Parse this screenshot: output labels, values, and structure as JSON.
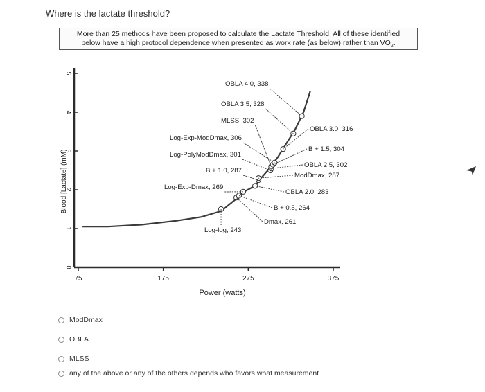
{
  "question": {
    "text": "Where is the lactate threshold?"
  },
  "figure": {
    "caption_line1": "More than 25 methods have been proposed to calculate the Lactate Threshold. All of these identified",
    "caption_line2": "below have a high protocol dependence when presented as work rate (as below) rather than VO",
    "caption_sub": "2",
    "caption_end": ".",
    "xlabel": "Power (watts)",
    "ylabel": "Blood [Lactate] (mM)",
    "x_tick_labels": [
      "75",
      "175",
      "275",
      "375"
    ],
    "y_tick_labels": [
      "0",
      "1",
      "2",
      "3",
      "4",
      "5"
    ],
    "annotations": [
      "OBLA 4.0, 338",
      "OBLA 3.5, 328",
      "MLSS, 302",
      "OBLA 3.0, 316",
      "Log-Exp-ModDmax, 306",
      "B + 1.5, 304",
      "Log-PolyModDmax, 301",
      "OBLA 2.5, 302",
      "B + 1.0, 287",
      "ModDmax, 287",
      "Log-Exp-Dmax, 269",
      "OBLA 2.0, 283",
      "B + 0.5, 264",
      "Dmax, 261",
      "Log-log, 243"
    ]
  },
  "chart_data": {
    "type": "line",
    "xlabel": "Power (watts)",
    "ylabel": "Blood [Lactate] (mM)",
    "xlim": [
      75,
      375
    ],
    "ylim": [
      0,
      5
    ],
    "x_ticks": [
      75,
      175,
      275,
      375
    ],
    "y_ticks": [
      0,
      1,
      2,
      3,
      4,
      5
    ],
    "series": [
      {
        "x": [
          80,
          110,
          150,
          190,
          220,
          243,
          260,
          270,
          283,
          290,
          300,
          310,
          320,
          330,
          340
        ],
        "y": [
          1.05,
          1.05,
          1.1,
          1.2,
          1.3,
          1.45,
          1.75,
          1.95,
          2.1,
          2.3,
          2.55,
          2.85,
          3.2,
          3.55,
          4.0
        ]
      }
    ],
    "points": [
      {
        "label": "Log-log",
        "x": 243,
        "y": 1.5
      },
      {
        "label": "Dmax",
        "x": 261,
        "y": 1.8
      },
      {
        "label": "B + 0.5",
        "x": 264,
        "y": 1.85
      },
      {
        "label": "Log-Exp-Dmax",
        "x": 269,
        "y": 1.95
      },
      {
        "label": "OBLA 2.0",
        "x": 283,
        "y": 2.1
      },
      {
        "label": "B + 1.0",
        "x": 287,
        "y": 2.25
      },
      {
        "label": "ModDmax",
        "x": 287,
        "y": 2.3
      },
      {
        "label": "Log-PolyModDmax",
        "x": 301,
        "y": 2.5
      },
      {
        "label": "OBLA 2.5",
        "x": 302,
        "y": 2.55
      },
      {
        "label": "MLSS",
        "x": 302,
        "y": 2.6
      },
      {
        "label": "B + 1.5",
        "x": 304,
        "y": 2.65
      },
      {
        "label": "Log-Exp-ModDmax",
        "x": 306,
        "y": 2.7
      },
      {
        "label": "OBLA 3.0",
        "x": 316,
        "y": 3.05
      },
      {
        "label": "OBLA 3.5",
        "x": 328,
        "y": 3.45
      },
      {
        "label": "OBLA 4.0",
        "x": 338,
        "y": 3.9
      }
    ],
    "grid": false
  },
  "options": [
    {
      "label": "ModDmax"
    },
    {
      "label": "OBLA"
    },
    {
      "label": "MLSS"
    },
    {
      "label": "any of the above or any of the others depends who favors what measurement"
    }
  ],
  "colors": {
    "curve": "#3a3a3a",
    "border": "#555555",
    "radio": "#8a8a8a"
  },
  "icons": {
    "cursor": "arrow-cursor-icon"
  }
}
